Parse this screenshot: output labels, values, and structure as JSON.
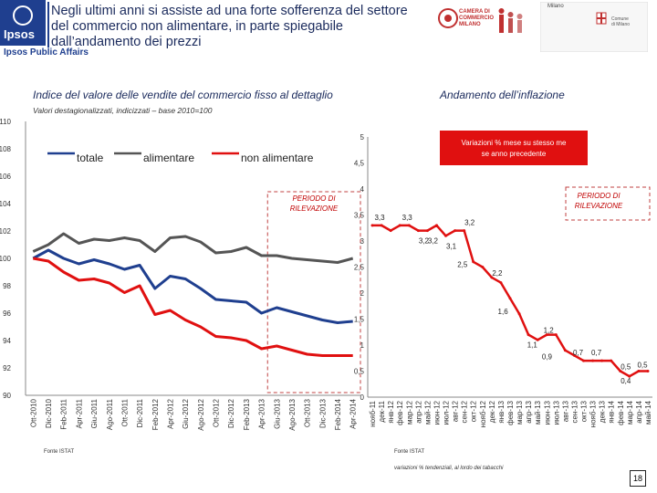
{
  "header": {
    "logo_text": "Ipsos",
    "brand": "Ipsos Public Affairs",
    "headline_1": "Negli ultimi anni si assiste ad una forte sofferenza del settore",
    "headline_2": "del commercio non alimentare, in parte spiegabile",
    "headline_3": "dall’andamento dei prezzi",
    "chamber_line1": "CAMERA DI",
    "chamber_line2": "COMMERCIO",
    "chamber_line3": "MILANO",
    "milano_title": "Milano",
    "milano_sub1": "Comune",
    "milano_sub2": "di Milano"
  },
  "left": {
    "title": "Indice del valore delle vendite del commercio fisso al dettaglio",
    "subtitle": "Valori destagionalizzati, indicizzati – base 2010=100",
    "source": "Fonte ISTAT"
  },
  "right": {
    "title": "Andamento dell’inflazione",
    "source": "Fonte ISTAT",
    "note": "variazioni % tendenziali, al lordo dei tabacchi"
  },
  "page_number": "18",
  "colors": {
    "totale": "#1f3f8f",
    "alimentare": "#555555",
    "non_alimentare": "#e01010",
    "inflazione": "#e01010",
    "period_box": "#c04040"
  },
  "chart_data": [
    {
      "type": "line",
      "title": "Indice del valore delle vendite del commercio fisso al dettaglio",
      "ylim": [
        90,
        110
      ],
      "yticks": [
        "110",
        "108",
        "106",
        "104",
        "102",
        "100",
        "98",
        "96",
        "94",
        "92",
        "90"
      ],
      "categories": [
        "Ott-2010",
        "Dic-2010",
        "Feb-2011",
        "Apr-2011",
        "Giu-2011",
        "Ago-2011",
        "Ott-2011",
        "Dic-2011",
        "Feb-2012",
        "Apr-2012",
        "Giu-2012",
        "Ago-2012",
        "Ott-2012",
        "Dic-2012",
        "Feb-2013",
        "Apr-2013",
        "Giu-2013",
        "Ago-2013",
        "Ott-2013",
        "Dic-2013",
        "Feb-2014",
        "Apr-2014"
      ],
      "legend": [
        "totale",
        "alimentare",
        "non alimentare"
      ],
      "annotation": "PERIODO DI RILEVAZIONE",
      "series": [
        {
          "name": "alimentare",
          "values": [
            100.5,
            101.0,
            101.8,
            101.1,
            101.4,
            101.3,
            101.5,
            101.3,
            100.5,
            101.5,
            101.6,
            101.2,
            100.4,
            100.5,
            100.8,
            100.2,
            100.2,
            100.0,
            99.9,
            99.8,
            99.7,
            100.0
          ]
        },
        {
          "name": "totale",
          "values": [
            100.0,
            100.6,
            100.0,
            99.6,
            99.9,
            99.6,
            99.2,
            99.5,
            97.8,
            98.7,
            98.5,
            97.8,
            97.0,
            96.9,
            96.8,
            96.0,
            96.4,
            96.1,
            95.8,
            95.5,
            95.3,
            95.4
          ]
        },
        {
          "name": "non alimentare",
          "values": [
            100.0,
            99.8,
            99.0,
            98.4,
            98.5,
            98.2,
            97.5,
            98.0,
            95.9,
            96.2,
            95.5,
            95.0,
            94.3,
            94.2,
            94.0,
            93.4,
            93.6,
            93.3,
            93.0,
            92.9,
            92.9,
            92.9
          ]
        }
      ]
    },
    {
      "type": "line",
      "title": "Variazioni % mese su stesso mese anno precedente",
      "ylim": [
        0,
        5
      ],
      "yticks": [
        "5",
        "4,5",
        "4",
        "3,5",
        "3",
        "2,5",
        "2",
        "1,5",
        "1",
        "0,5",
        "0"
      ],
      "categories": [
        "нояб-11",
        "дек-11",
        "янв-12",
        "фев-12",
        "мар-12",
        "апр-12",
        "май-12",
        "июн-12",
        "июл-12",
        "авг-12",
        "сен-12",
        "окт-12",
        "нояб-12",
        "дек-12",
        "янв-13",
        "фев-13",
        "мар-13",
        "апр-13",
        "май-13",
        "июн-13",
        "июл-13",
        "авг-13",
        "сен-13",
        "окт-13",
        "нояб-13",
        "дек-13",
        "янв-14",
        "фев-14",
        "мар-14",
        "апр-14",
        "май-14"
      ],
      "annotation": "PERIODO DI RILEVAZIONE",
      "series": [
        {
          "name": "inflazione",
          "values": [
            3.3,
            3.3,
            3.2,
            3.3,
            3.3,
            3.2,
            3.2,
            3.3,
            3.1,
            3.2,
            3.2,
            2.6,
            2.5,
            2.3,
            2.2,
            1.9,
            1.6,
            1.2,
            1.1,
            1.2,
            1.2,
            0.9,
            0.8,
            0.7,
            0.7,
            0.7,
            0.7,
            0.5,
            0.4,
            0.5,
            0.5
          ]
        }
      ],
      "data_labels": [
        "3,3",
        "3,3",
        "3,2",
        "3,2",
        "3,2",
        "3,1",
        "2,5",
        "2,2",
        "1,6",
        "1,2",
        "1,1",
        "0,9",
        "0,7",
        "0,7",
        "0,5",
        "0,4",
        "0,5"
      ]
    }
  ]
}
